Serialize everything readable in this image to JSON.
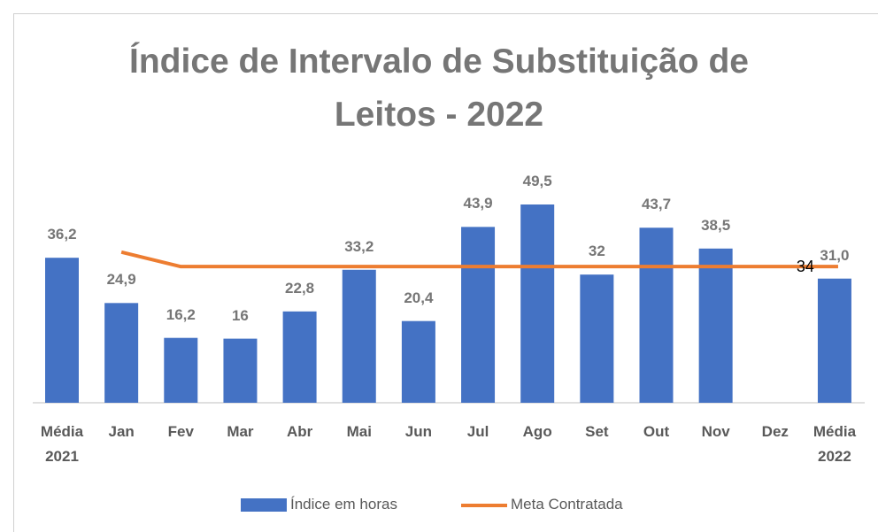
{
  "chart_data": {
    "type": "bar",
    "title": "Índice de Intervalo de Substituição de Leitos - 2022",
    "categories": [
      "Média 2021",
      "Jan",
      "Fev",
      "Mar",
      "Abr",
      "Mai",
      "Jun",
      "Jul",
      "Ago",
      "Set",
      "Out",
      "Nov",
      "Dez",
      "Média 2022"
    ],
    "series": [
      {
        "name": "Índice em horas",
        "type": "bar",
        "color": "#4472c4",
        "values": [
          36.2,
          24.9,
          16.2,
          16,
          22.8,
          33.2,
          20.4,
          43.9,
          49.5,
          32,
          43.7,
          38.5,
          null,
          31.0
        ],
        "value_labels": [
          "36,2",
          "24,9",
          "16,2",
          "16",
          "22,8",
          "33,2",
          "20,4",
          "43,9",
          "49,5",
          "32",
          "43,7",
          "38,5",
          null,
          "31,0"
        ]
      },
      {
        "name": "Meta Contratada",
        "type": "line",
        "color": "#ed7d31",
        "values": [
          null,
          37.6,
          34,
          34,
          34,
          34,
          34,
          34,
          34,
          34,
          34,
          34,
          34,
          34
        ],
        "value_labels": [
          null,
          null,
          null,
          null,
          null,
          null,
          null,
          null,
          null,
          null,
          null,
          null,
          null,
          "34"
        ]
      }
    ],
    "ylim": [
      0,
      55
    ],
    "legend": "bottom"
  }
}
